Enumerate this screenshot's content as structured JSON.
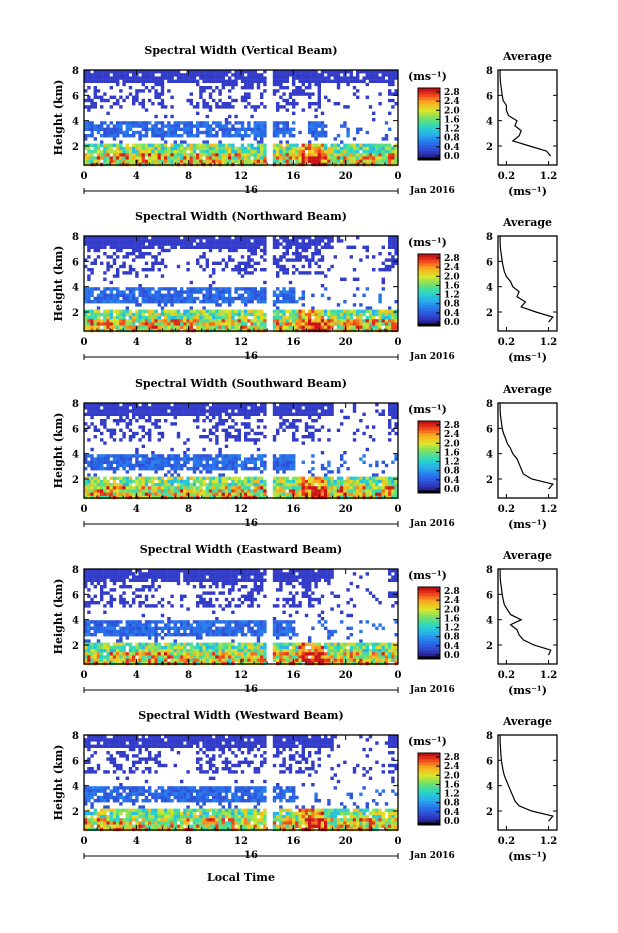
{
  "figure": {
    "xlabel": "Local Time",
    "x_ticks": [
      "0",
      "4",
      "8",
      "12",
      "16",
      "20",
      "0"
    ],
    "date_tick": "16",
    "date_label": "Jan 2016",
    "y_ticks": [
      "2",
      "4",
      "6",
      "8"
    ],
    "ylabel": "Height (km)",
    "colorbar_unit": "(ms⁻¹)",
    "avg_title": "Average",
    "avg_x_ticks": [
      "0.2",
      "1.2"
    ],
    "avg_xlabel": "(ms⁻¹)",
    "avg_y_ticks": [
      "2",
      "4",
      "6",
      "8"
    ]
  },
  "chart_data": [
    {
      "type": "heatmap",
      "title": "Spectral Width (Vertical Beam)",
      "xlim": [
        0,
        24
      ],
      "ylim": [
        0.5,
        8
      ],
      "colorbar_ticks": [
        "0.0",
        "0.4",
        "0.8",
        "1.2",
        "1.6",
        "2.0",
        "2.4",
        "2.8"
      ],
      "colorbar_range": [
        0,
        2.8
      ],
      "average_profile": {
        "xlim": [
          0,
          1.4
        ],
        "ylim": [
          0.5,
          8
        ],
        "height_km": [
          1.2,
          1.6,
          2.0,
          2.4,
          2.8,
          3.2,
          3.6,
          4.0,
          4.4,
          4.8,
          5.2,
          5.6,
          6.0,
          6.5,
          7.0,
          7.5,
          8.0
        ],
        "width_ms": [
          1.25,
          1.15,
          0.75,
          0.35,
          0.5,
          0.55,
          0.4,
          0.45,
          0.25,
          0.2,
          0.2,
          0.12,
          0.1,
          0.08,
          0.06,
          0.05,
          0.05
        ]
      }
    },
    {
      "type": "heatmap",
      "title": "Spectral Width (Northward Beam)",
      "xlim": [
        0,
        24
      ],
      "ylim": [
        0.5,
        8
      ],
      "colorbar_ticks": [
        "0.0",
        "0.4",
        "0.8",
        "1.2",
        "1.6",
        "2.0",
        "2.4",
        "2.8"
      ],
      "colorbar_range": [
        0,
        2.8
      ],
      "average_profile": {
        "xlim": [
          0,
          1.4
        ],
        "ylim": [
          0.5,
          8
        ],
        "height_km": [
          1.2,
          1.6,
          2.0,
          2.4,
          2.8,
          3.2,
          3.6,
          4.0,
          4.4,
          4.8,
          5.2,
          5.6,
          6.0,
          6.5,
          7.0,
          7.5,
          8.0
        ],
        "width_ms": [
          1.2,
          1.3,
          0.9,
          0.55,
          0.65,
          0.45,
          0.5,
          0.35,
          0.3,
          0.2,
          0.15,
          0.12,
          0.1,
          0.08,
          0.06,
          0.05,
          0.05
        ]
      }
    },
    {
      "type": "heatmap",
      "title": "Spectral Width (Southward Beam)",
      "xlim": [
        0,
        24
      ],
      "ylim": [
        0.5,
        8
      ],
      "colorbar_ticks": [
        "0.0",
        "0.4",
        "0.8",
        "1.2",
        "1.6",
        "2.0",
        "2.4",
        "2.8"
      ],
      "colorbar_range": [
        0,
        2.8
      ],
      "average_profile": {
        "xlim": [
          0,
          1.4
        ],
        "ylim": [
          0.5,
          8
        ],
        "height_km": [
          1.2,
          1.6,
          2.0,
          2.4,
          2.8,
          3.2,
          3.6,
          4.0,
          4.4,
          4.8,
          5.2,
          5.6,
          6.0,
          6.5,
          7.0,
          7.5,
          8.0
        ],
        "width_ms": [
          1.2,
          1.3,
          0.8,
          0.6,
          0.55,
          0.5,
          0.45,
          0.35,
          0.3,
          0.22,
          0.18,
          0.13,
          0.1,
          0.08,
          0.06,
          0.05,
          0.05
        ]
      }
    },
    {
      "type": "heatmap",
      "title": "Spectral Width (Eastward Beam)",
      "xlim": [
        0,
        24
      ],
      "ylim": [
        0.5,
        8
      ],
      "colorbar_ticks": [
        "0.0",
        "0.4",
        "0.8",
        "1.2",
        "1.6",
        "2.0",
        "2.4",
        "2.8"
      ],
      "colorbar_range": [
        0,
        2.8
      ],
      "average_profile": {
        "xlim": [
          0,
          1.4
        ],
        "ylim": [
          0.5,
          8
        ],
        "height_km": [
          1.2,
          1.6,
          2.0,
          2.4,
          2.8,
          3.2,
          3.6,
          4.0,
          4.4,
          4.8,
          5.2,
          5.6,
          6.0,
          6.5,
          7.0,
          7.5,
          8.0
        ],
        "width_ms": [
          1.2,
          1.25,
          0.85,
          0.6,
          0.5,
          0.45,
          0.3,
          0.55,
          0.3,
          0.22,
          0.15,
          0.12,
          0.1,
          0.08,
          0.06,
          0.05,
          0.05
        ]
      }
    },
    {
      "type": "heatmap",
      "title": "Spectral Width (Westward Beam)",
      "xlim": [
        0,
        24
      ],
      "ylim": [
        0.5,
        8
      ],
      "colorbar_ticks": [
        "0.0",
        "0.4",
        "0.8",
        "1.2",
        "1.6",
        "2.0",
        "2.4",
        "2.8"
      ],
      "colorbar_range": [
        0,
        2.8
      ],
      "average_profile": {
        "xlim": [
          0,
          1.4
        ],
        "ylim": [
          0.5,
          8
        ],
        "height_km": [
          1.2,
          1.6,
          2.0,
          2.4,
          2.8,
          3.2,
          3.6,
          4.0,
          4.4,
          4.8,
          5.2,
          5.6,
          6.0,
          6.5,
          7.0,
          7.5,
          8.0
        ],
        "width_ms": [
          1.2,
          1.3,
          0.8,
          0.5,
          0.4,
          0.35,
          0.3,
          0.25,
          0.2,
          0.15,
          0.12,
          0.1,
          0.08,
          0.07,
          0.06,
          0.05,
          0.05
        ]
      }
    }
  ]
}
